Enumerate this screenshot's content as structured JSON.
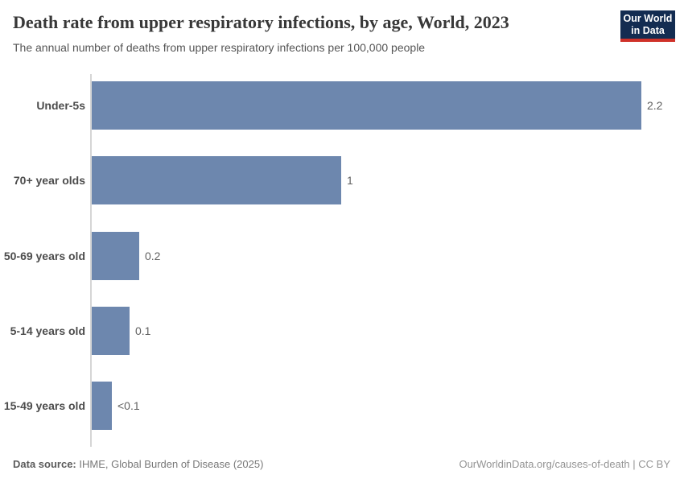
{
  "header": {
    "title": "Death rate from upper respiratory infections, by age, World, 2023",
    "subtitle": "The annual number of deaths from upper respiratory infections per 100,000 people"
  },
  "logo": {
    "line1": "Our World",
    "line2": "in Data",
    "bg_color": "#132c51",
    "accent_color": "#cf3129"
  },
  "chart_data": {
    "type": "bar",
    "orientation": "horizontal",
    "title": "Death rate from upper respiratory infections, by age, World, 2023",
    "subtitle": "The annual number of deaths from upper respiratory infections per 100,000 people",
    "categories": [
      "Under-5s",
      "70+ year olds",
      "50-69 years old",
      "5-14 years old",
      "15-49 years old"
    ],
    "values": [
      2.2,
      1.0,
      0.19,
      0.15,
      0.08
    ],
    "value_labels": [
      "2.2",
      "1",
      "0.2",
      "0.1",
      "<0.1"
    ],
    "xlim": [
      0,
      2.2
    ],
    "grid": false,
    "legend": "none",
    "bar_color": "#6d87ae",
    "axis_line_color": "#d6d6d6"
  },
  "footer": {
    "source_label": "Data source:",
    "source_text": "IHME, Global Burden of Disease (2025)",
    "credit": "OurWorldinData.org/causes-of-death | CC BY"
  }
}
